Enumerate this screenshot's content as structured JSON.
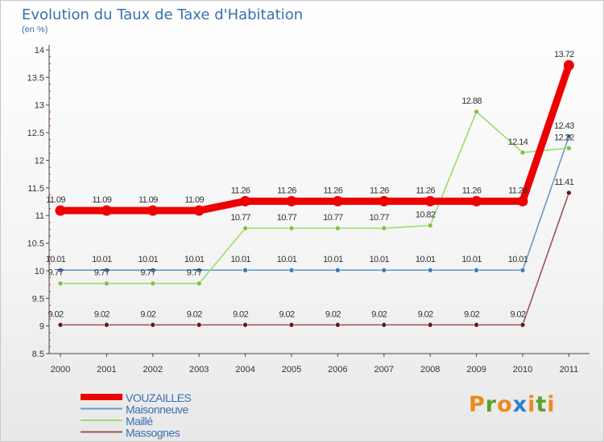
{
  "chart_data": {
    "type": "line",
    "title": "Evolution du Taux de Taxe d'Habitation",
    "subtitle": "(en %)",
    "categories": [
      "2000",
      "2001",
      "2002",
      "2003",
      "2004",
      "2005",
      "2006",
      "2007",
      "2008",
      "2009",
      "2010",
      "2011"
    ],
    "y_ticks": [
      "8.5",
      "9",
      "9.5",
      "10",
      "10.5",
      "11",
      "11.5",
      "12",
      "12.5",
      "13",
      "13.5",
      "14"
    ],
    "ylim": [
      8.5,
      14
    ],
    "series": [
      {
        "name": "Maisonneuve",
        "color": "#6699cc",
        "marker": "#3d7ab8",
        "values": [
          10.01,
          10.01,
          10.01,
          10.01,
          10.01,
          10.01,
          10.01,
          10.01,
          10.01,
          10.01,
          10.01,
          12.43
        ],
        "labels": [
          "10.01",
          "10.01",
          "10.01",
          "10.01",
          "10.01",
          "10.01",
          "10.01",
          "10.01",
          "10.01",
          "10.01",
          "10.01",
          "12.43"
        ]
      },
      {
        "name": "Maillé",
        "color": "#99dd66",
        "marker": "#7cc444",
        "values": [
          9.77,
          9.77,
          9.77,
          9.77,
          10.77,
          10.77,
          10.77,
          10.77,
          10.82,
          12.88,
          12.14,
          12.22
        ],
        "labels": [
          "9.77",
          "9.77",
          "9.77",
          "9.77",
          "10.77",
          "10.77",
          "10.77",
          "10.77",
          "10.82",
          "12.88",
          "12.14",
          "12.22"
        ]
      },
      {
        "name": "Massognes",
        "color": "#995555",
        "marker": "#661a1a",
        "values": [
          9.02,
          9.02,
          9.02,
          9.02,
          9.02,
          9.02,
          9.02,
          9.02,
          9.02,
          9.02,
          9.02,
          11.41
        ],
        "labels": [
          "9.02",
          "9.02",
          "9.02",
          "9.02",
          "9.02",
          "9.02",
          "9.02",
          "9.02",
          "9.02",
          "9.02",
          "9.02",
          "11.41"
        ]
      },
      {
        "name": "VOUZAILLES",
        "color": "#ee0000",
        "marker": "#ee0000",
        "values": [
          11.09,
          11.09,
          11.09,
          11.09,
          11.26,
          11.26,
          11.26,
          11.26,
          11.26,
          11.26,
          11.26,
          13.72
        ],
        "labels": [
          "11.09",
          "11.09",
          "11.09",
          "11.09",
          "11.26",
          "11.26",
          "11.26",
          "11.26",
          "11.26",
          "11.26",
          "11.26",
          "13.72"
        ]
      }
    ],
    "legend": [
      "VOUZAILLES",
      "Maisonneuve",
      "Maillé",
      "Massognes"
    ],
    "legend_placement": "bottom-left",
    "grid": false
  },
  "logo": {
    "text": "Proxiti"
  }
}
